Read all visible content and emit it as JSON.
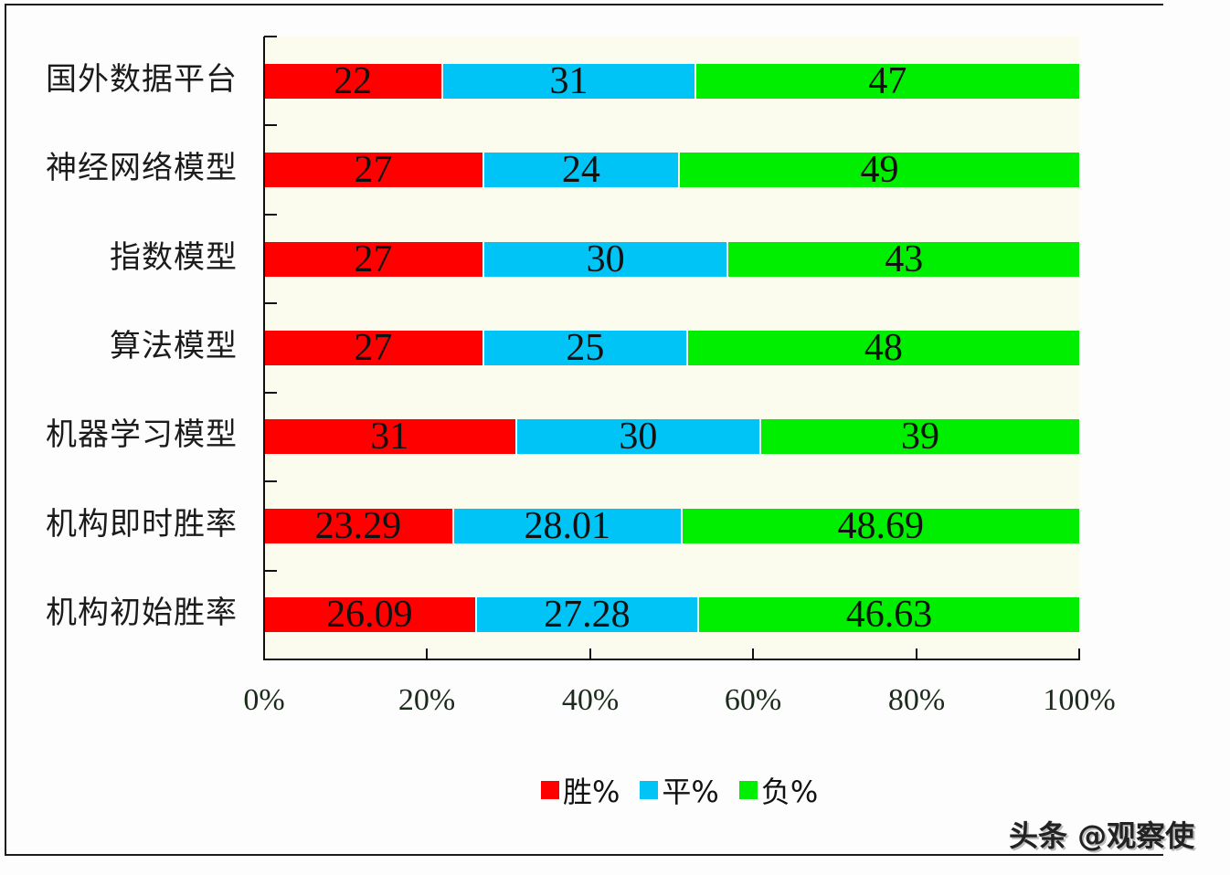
{
  "chart_data": {
    "type": "bar",
    "orientation": "horizontal",
    "stacked": true,
    "percent_stacked": true,
    "title": "",
    "xlabel": "",
    "ylabel": "",
    "categories": [
      "国外数据平台",
      "神经网络模型",
      "指数模型",
      "算法模型",
      "机器学习模型",
      "机构即时胜率",
      "机构初始胜率"
    ],
    "series": [
      {
        "name": "胜%",
        "color": "#fe0000",
        "values": [
          22,
          27,
          27,
          27,
          31,
          23.29,
          26.09
        ]
      },
      {
        "name": "平%",
        "color": "#00c4f5",
        "values": [
          31,
          24,
          30,
          25,
          30,
          28.01,
          27.28
        ]
      },
      {
        "name": "负%",
        "color": "#00ee00",
        "values": [
          47,
          49,
          43,
          48,
          39,
          48.69,
          46.63
        ]
      }
    ],
    "labels": [
      [
        "22",
        "31",
        "47"
      ],
      [
        "27",
        "24",
        "49"
      ],
      [
        "27",
        "30",
        "43"
      ],
      [
        "27",
        "25",
        "48"
      ],
      [
        "31",
        "30",
        "39"
      ],
      [
        "23.29",
        "28.01",
        "48.69"
      ],
      [
        "26.09",
        "27.28",
        "46.63"
      ]
    ],
    "xticks": [
      "0%",
      "20%",
      "40%",
      "60%",
      "80%",
      "100%"
    ],
    "xlim": [
      0,
      100
    ],
    "grid": false,
    "legend_position": "bottom",
    "plot_background": "#fbfbee"
  },
  "legend": [
    {
      "label": "胜%",
      "color": "#fe0000"
    },
    {
      "label": "平%",
      "color": "#00c4f5"
    },
    {
      "label": "负%",
      "color": "#00ee00"
    }
  ],
  "watermark": "头条 @观察使"
}
